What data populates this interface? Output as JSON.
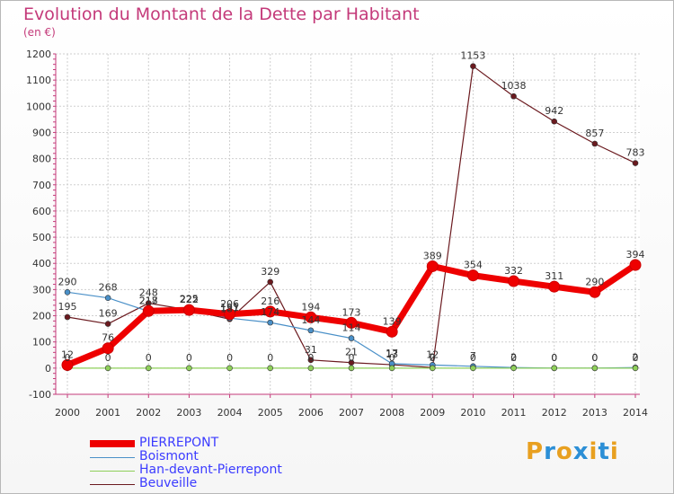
{
  "title": "Evolution du Montant de la Dette par Habitant",
  "subtitle": "(en €)",
  "logo": {
    "text": "Proxiti",
    "colors": [
      "#e8a020",
      "#2c8fd6",
      "#e8a020",
      "#2c8fd6",
      "#e8a020",
      "#2c8fd6",
      "#e8a020"
    ]
  },
  "chart_data": {
    "type": "line",
    "x": [
      "2000",
      "2001",
      "2002",
      "2003",
      "2004",
      "2005",
      "2006",
      "2007",
      "2008",
      "2009",
      "2010",
      "2011",
      "2012",
      "2013",
      "2014"
    ],
    "ylim": [
      -100,
      1200
    ],
    "yticks": [
      "-100",
      "0",
      "100",
      "200",
      "300",
      "400",
      "500",
      "600",
      "700",
      "800",
      "900",
      "1000",
      "1100",
      "1200"
    ],
    "grid": true,
    "legend_position": "bottom-left",
    "series": [
      {
        "name": "Beuveille",
        "color": "#6b1a1f",
        "marker": "#6b1a1f",
        "width": 1.2,
        "values": [
          195,
          169,
          248,
          222,
          187,
          329,
          31,
          21,
          13,
          2,
          1153,
          1038,
          942,
          857,
          783
        ],
        "labels": [
          "195",
          "169",
          "248",
          "222",
          "187",
          "329",
          "31",
          "21",
          "13",
          "2",
          "1153",
          "1038",
          "942",
          "857",
          "783"
        ]
      },
      {
        "name": "Boismont",
        "color": "#4a90c8",
        "marker": "#4a90c8",
        "width": 1.2,
        "values": [
          290,
          268,
          217,
          225,
          191,
          174,
          144,
          114,
          17,
          12,
          7,
          2,
          0,
          0,
          2
        ],
        "labels": [
          "290",
          "268",
          "217",
          "225",
          "191",
          "174",
          "144",
          "114",
          "17",
          "12",
          "7",
          "2",
          "0",
          "0",
          "2"
        ]
      },
      {
        "name": "Han-devant-Pierrepont",
        "color": "#8fd05a",
        "marker": "#8fd05a",
        "width": 1.2,
        "values": [
          0,
          0,
          0,
          0,
          0,
          0,
          0,
          0,
          0,
          0,
          0,
          0,
          0,
          0,
          0
        ],
        "labels": [
          "0",
          "0",
          "0",
          "0",
          "0",
          "0",
          "0",
          "0",
          "0",
          "0",
          "0",
          "0",
          "0",
          "0",
          "0"
        ]
      },
      {
        "name": "PIERREPONT",
        "color": "#ee0000",
        "marker": "#ee0000",
        "width": 7,
        "values": [
          12,
          76,
          218,
          222,
          206,
          216,
          194,
          173,
          139,
          389,
          354,
          332,
          311,
          290,
          394
        ],
        "labels": [
          "12",
          "76",
          "218",
          "222",
          "206",
          "216",
          "194",
          "173",
          "139",
          "389",
          "354",
          "332",
          "311",
          "290",
          "394"
        ]
      }
    ],
    "legend_order": [
      "PIERREPONT",
      "Boismont",
      "Han-devant-Pierrepont",
      "Beuveille"
    ]
  }
}
